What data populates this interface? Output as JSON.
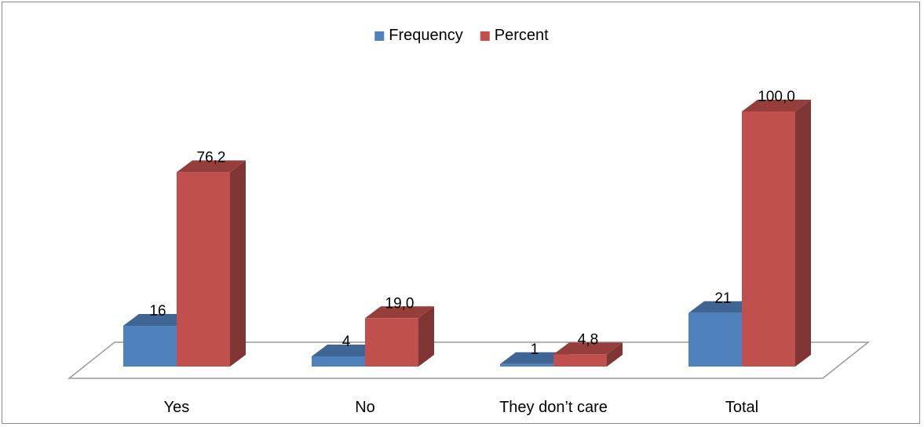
{
  "chart_data": {
    "type": "bar",
    "categories": [
      "Yes",
      "No",
      "They don’t care",
      "Total"
    ],
    "series": [
      {
        "name": "Frequency",
        "values": [
          16,
          4,
          1,
          21
        ],
        "labels": [
          "16",
          "4",
          "1",
          "21"
        ],
        "color": "#4f81bd"
      },
      {
        "name": "Percent",
        "values": [
          76.2,
          19.0,
          4.8,
          100.0
        ],
        "labels": [
          "76,2",
          "19,0",
          "4,8",
          "100,0"
        ],
        "color": "#c0504d"
      }
    ],
    "ylim": [
      0,
      100
    ],
    "grid": false,
    "legend": "top-center",
    "style": "3d"
  }
}
